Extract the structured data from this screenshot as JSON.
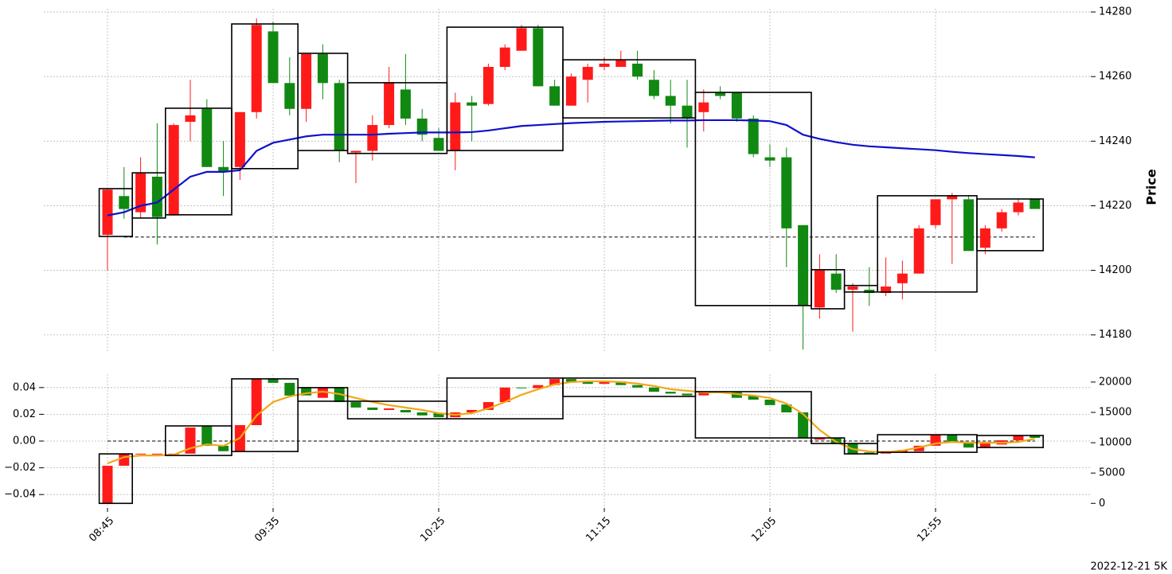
{
  "footer": "2022-12-21 5K",
  "chart_data": [
    {
      "type": "candlestick",
      "ylabel": "Price",
      "up_color": "#ff1a1a",
      "down_color": "#118811",
      "grid": true,
      "ylim": [
        14175,
        14281
      ],
      "yticks": [
        14180,
        14200,
        14220,
        14240,
        14260,
        14280
      ],
      "open": [
        14211,
        14223,
        14218,
        14229,
        14217,
        14246,
        14250,
        14232,
        14232,
        14249,
        14274,
        14258,
        14250,
        14267,
        14258,
        14236.5,
        14237,
        14245,
        14256,
        14247,
        14241,
        14237,
        14252,
        14251.5,
        14263,
        14268,
        14275,
        14257,
        14251,
        14259,
        14263,
        14263,
        14264,
        14259,
        14254,
        14251,
        14249,
        14255,
        14255,
        14247,
        14235,
        14235,
        14214,
        14188.5,
        14199,
        14194,
        14194,
        14193,
        14196,
        14199,
        14214,
        14222,
        14222,
        14207,
        14213,
        14218,
        14222
      ],
      "high": [
        14225,
        14232,
        14235,
        14245.5,
        14245.5,
        14259,
        14253,
        14240,
        14249,
        14278,
        14277,
        14266,
        14267,
        14270,
        14259,
        14237,
        14248,
        14263,
        14267,
        14250,
        14244,
        14255,
        14254,
        14264,
        14270,
        14276,
        14276,
        14259,
        14261,
        14264,
        14266,
        14268,
        14268,
        14262,
        14259,
        14259,
        14256,
        14257,
        14255,
        14248,
        14239,
        14238,
        14214,
        14205,
        14205,
        14196,
        14201,
        14204,
        14203,
        14214,
        14222,
        14224,
        14223,
        14214,
        14219,
        14222,
        14222
      ],
      "low": [
        14200,
        14216,
        14216,
        14208,
        14217,
        14240,
        14232,
        14223,
        14228,
        14247,
        14258,
        14248,
        14246,
        14253,
        14233.5,
        14227,
        14234,
        14244,
        14245,
        14240,
        14237,
        14231,
        14240,
        14251,
        14262,
        14268,
        14257,
        14251,
        14251,
        14252,
        14262,
        14263,
        14259,
        14253,
        14245.5,
        14238,
        14243,
        14253,
        14246,
        14235,
        14232,
        14201,
        14175.5,
        14185,
        14193,
        14181,
        14189,
        14192,
        14191,
        14199,
        14213,
        14202,
        14206,
        14205,
        14212,
        14217,
        14219
      ],
      "close": [
        14225,
        14219,
        14230,
        14216.5,
        14245,
        14248,
        14232,
        14230.5,
        14249,
        14276,
        14258,
        14250,
        14267,
        14258,
        14237,
        14237,
        14245,
        14258,
        14247,
        14242,
        14237,
        14252,
        14251,
        14263,
        14269,
        14275,
        14257,
        14251,
        14260,
        14263,
        14264,
        14265,
        14260,
        14254,
        14251,
        14247,
        14252,
        14254,
        14247,
        14236,
        14234,
        14213,
        14189,
        14200,
        14194,
        14195,
        14193,
        14195,
        14199,
        14213,
        14222,
        14223,
        14206,
        14213,
        14218,
        14221,
        14219
      ],
      "lines": [
        {
          "color": "#1010cc",
          "values": [
            14217,
            14218,
            14220,
            14221,
            14225,
            14229,
            14230.5,
            14230.5,
            14231,
            14237,
            14239.5,
            14240.5,
            14241.5,
            14242,
            14242,
            14242,
            14242,
            14242.3,
            14242.5,
            14242.7,
            14242.7,
            14242.7,
            14242.8,
            14243.3,
            14244,
            14244.7,
            14245,
            14245.3,
            14245.6,
            14245.8,
            14246,
            14246.1,
            14246.2,
            14246.3,
            14246.4,
            14246.4,
            14246.5,
            14246.5,
            14246.5,
            14246.4,
            14246.2,
            14245,
            14242,
            14240.7,
            14239.7,
            14238.9,
            14238.4,
            14238.1,
            14237.8,
            14237.5,
            14237.2,
            14236.7,
            14236.3,
            14236,
            14235.7,
            14235.4,
            14235
          ]
        }
      ],
      "boxes": {
        "start": [
          0,
          2,
          4,
          8,
          12,
          15,
          21,
          28,
          36,
          43,
          45,
          47,
          53
        ],
        "end": [
          1,
          3,
          7,
          11,
          14,
          20,
          27,
          35,
          42,
          44,
          46,
          52,
          56
        ],
        "top": [
          14225.3,
          14230.2,
          14250.2,
          14276.3,
          14267.2,
          14258.1,
          14275.3,
          14265.2,
          14255.1,
          14200.2,
          14195.3,
          14223.1,
          14222.1
        ],
        "bottom": [
          14210.5,
          14216.2,
          14217.2,
          14231.5,
          14237.1,
          14236.2,
          14237.1,
          14247.2,
          14189.1,
          14188.1,
          14193.3,
          14193.3,
          14206.1
        ]
      },
      "hline": {
        "value": 14210.3,
        "start": 1,
        "end": 56
      }
    },
    {
      "type": "candlestick",
      "candle_axis": "y2",
      "up_color": "#ff1a1a",
      "down_color": "#118811",
      "grid": true,
      "categories": [
        "08:45",
        null,
        null,
        null,
        null,
        null,
        null,
        null,
        null,
        null,
        "09:35",
        null,
        null,
        null,
        null,
        null,
        null,
        null,
        null,
        null,
        "10:25",
        null,
        null,
        null,
        null,
        null,
        null,
        null,
        null,
        null,
        "11:15",
        null,
        null,
        null,
        null,
        null,
        null,
        null,
        null,
        null,
        "12:05",
        null,
        null,
        null,
        null,
        null,
        null,
        null,
        null,
        null,
        "12:55",
        null,
        null,
        null,
        null,
        null,
        null
      ],
      "ylim": [
        -0.05,
        0.05
      ],
      "yticks": [
        {
          "value": -0.04,
          "label": "−0.04"
        },
        {
          "value": -0.02,
          "label": "−0.02"
        },
        {
          "value": 0,
          "label": "0.00"
        },
        0.02,
        0.04
      ],
      "y2lim": [
        -750,
        21300
      ],
      "y2ticks": [
        0,
        5000,
        10000,
        15000,
        20000
      ],
      "open": [
        0,
        6200,
        8200,
        8200,
        8200,
        8200,
        12700,
        9500,
        8600,
        12900,
        20500,
        19870,
        19100,
        17400,
        19000,
        16700,
        15800,
        15400,
        15400,
        15000,
        14900,
        14200,
        15000,
        15400,
        16700,
        19100,
        19000,
        19500,
        20500,
        20000,
        19700,
        20100,
        19500,
        19100,
        18400,
        18100,
        17800,
        18300,
        18300,
        17800,
        17100,
        16300,
        15000,
        10500,
        10800,
        9900,
        8400,
        8200,
        8400,
        8600,
        9500,
        11300,
        10100,
        9200,
        9700,
        10400,
        11200
      ],
      "close": [
        6200,
        8200,
        8200,
        8200,
        8200,
        12500,
        9500,
        8600,
        12900,
        20500,
        19870,
        17770,
        17800,
        19080,
        16700,
        15800,
        15400,
        15660,
        15000,
        14500,
        14200,
        15000,
        15400,
        16700,
        19100,
        19000,
        19500,
        20500,
        20000,
        19700,
        20100,
        19500,
        19100,
        18400,
        18100,
        17800,
        18300,
        18400,
        17400,
        17100,
        16200,
        15000,
        10800,
        10700,
        9900,
        8200,
        8200,
        8600,
        8800,
        9500,
        11300,
        10100,
        9200,
        9900,
        10400,
        11200,
        10800
      ],
      "lines": [
        {
          "color": "#f0a818",
          "axis": "y2",
          "values": [
            6580,
            7630,
            7900,
            7900,
            8030,
            9080,
            9740,
            9480,
            10790,
            14480,
            16710,
            17630,
            18160,
            18420,
            18030,
            17370,
            16710,
            16190,
            15790,
            15400,
            14870,
            14610,
            14870,
            15660,
            16710,
            17900,
            18820,
            19610,
            20000,
            20130,
            20130,
            20000,
            19740,
            19350,
            18820,
            18560,
            18290,
            18290,
            18030,
            17770,
            17370,
            16450,
            14740,
            12110,
            10130,
            8950,
            8550,
            8420,
            8690,
            9210,
            9870,
            10130,
            10000,
            10000,
            10000,
            10130,
            10660
          ]
        }
      ],
      "boxes": {
        "axis": "y2",
        "start": [
          0,
          4,
          8,
          12,
          15,
          21,
          28,
          36,
          43,
          45,
          47,
          53
        ],
        "end": [
          1,
          7,
          11,
          14,
          20,
          27,
          35,
          42,
          44,
          46,
          52,
          56
        ],
        "top": [
          8160,
          12770,
          20530,
          19080,
          16840,
          20660,
          20660,
          18420,
          10790,
          9870,
          11320,
          11190
        ],
        "bottom": [
          0,
          7900,
          8550,
          16840,
          13950,
          13950,
          17630,
          10790,
          9870,
          8160,
          8420,
          9210
        ]
      },
      "hline": {
        "value": 0,
        "start": 0,
        "end": 56
      }
    }
  ]
}
